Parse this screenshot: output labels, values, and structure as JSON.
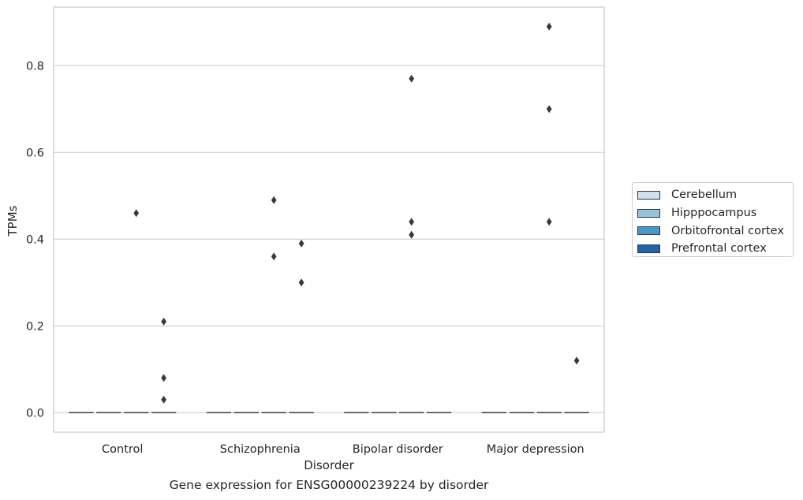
{
  "colors": {
    "grid": "#cccccc",
    "axes_frame": "#c8c8c8",
    "outlier": "#3a3a3a",
    "median": "#3a3a3a"
  },
  "caption": "Gene expression for ENSG00000239224 by disorder",
  "chart_data": {
    "type": "box",
    "xlabel": "Disorder",
    "ylabel": "TPMs",
    "ylim": [
      -0.045,
      0.935
    ],
    "yticks": [
      0.0,
      0.2,
      0.4,
      0.6,
      0.8
    ],
    "ytick_labels": [
      "0.0",
      "0.2",
      "0.4",
      "0.6",
      "0.8"
    ],
    "grid": true,
    "legend_position": "right",
    "categories": [
      "Control",
      "Schizophrenia",
      "Bipolar disorder",
      "Major depression"
    ],
    "series": [
      {
        "name": "Cerebellum",
        "color": "#d0e1f2",
        "median": [
          0,
          0,
          0,
          0
        ],
        "outliers": [
          [],
          [],
          [],
          []
        ]
      },
      {
        "name": "Hipppocampus",
        "color": "#94c4df",
        "median": [
          0,
          0,
          0,
          0
        ],
        "outliers": [
          [],
          [],
          [],
          []
        ]
      },
      {
        "name": "Orbitofrontal cortex",
        "color": "#4a98c9",
        "median": [
          0,
          0,
          0,
          0
        ],
        "outliers": [
          [
            0.46
          ],
          [
            0.36,
            0.49
          ],
          [
            0.77,
            0.44,
            0.41
          ],
          [
            0.89,
            0.7,
            0.44
          ]
        ]
      },
      {
        "name": "Prefrontal cortex",
        "color": "#2164ab",
        "median": [
          0,
          0,
          0,
          0
        ],
        "outliers": [
          [
            0.21,
            0.08,
            0.03
          ],
          [
            0.39,
            0.3
          ],
          [],
          [
            0.12
          ]
        ]
      }
    ]
  }
}
